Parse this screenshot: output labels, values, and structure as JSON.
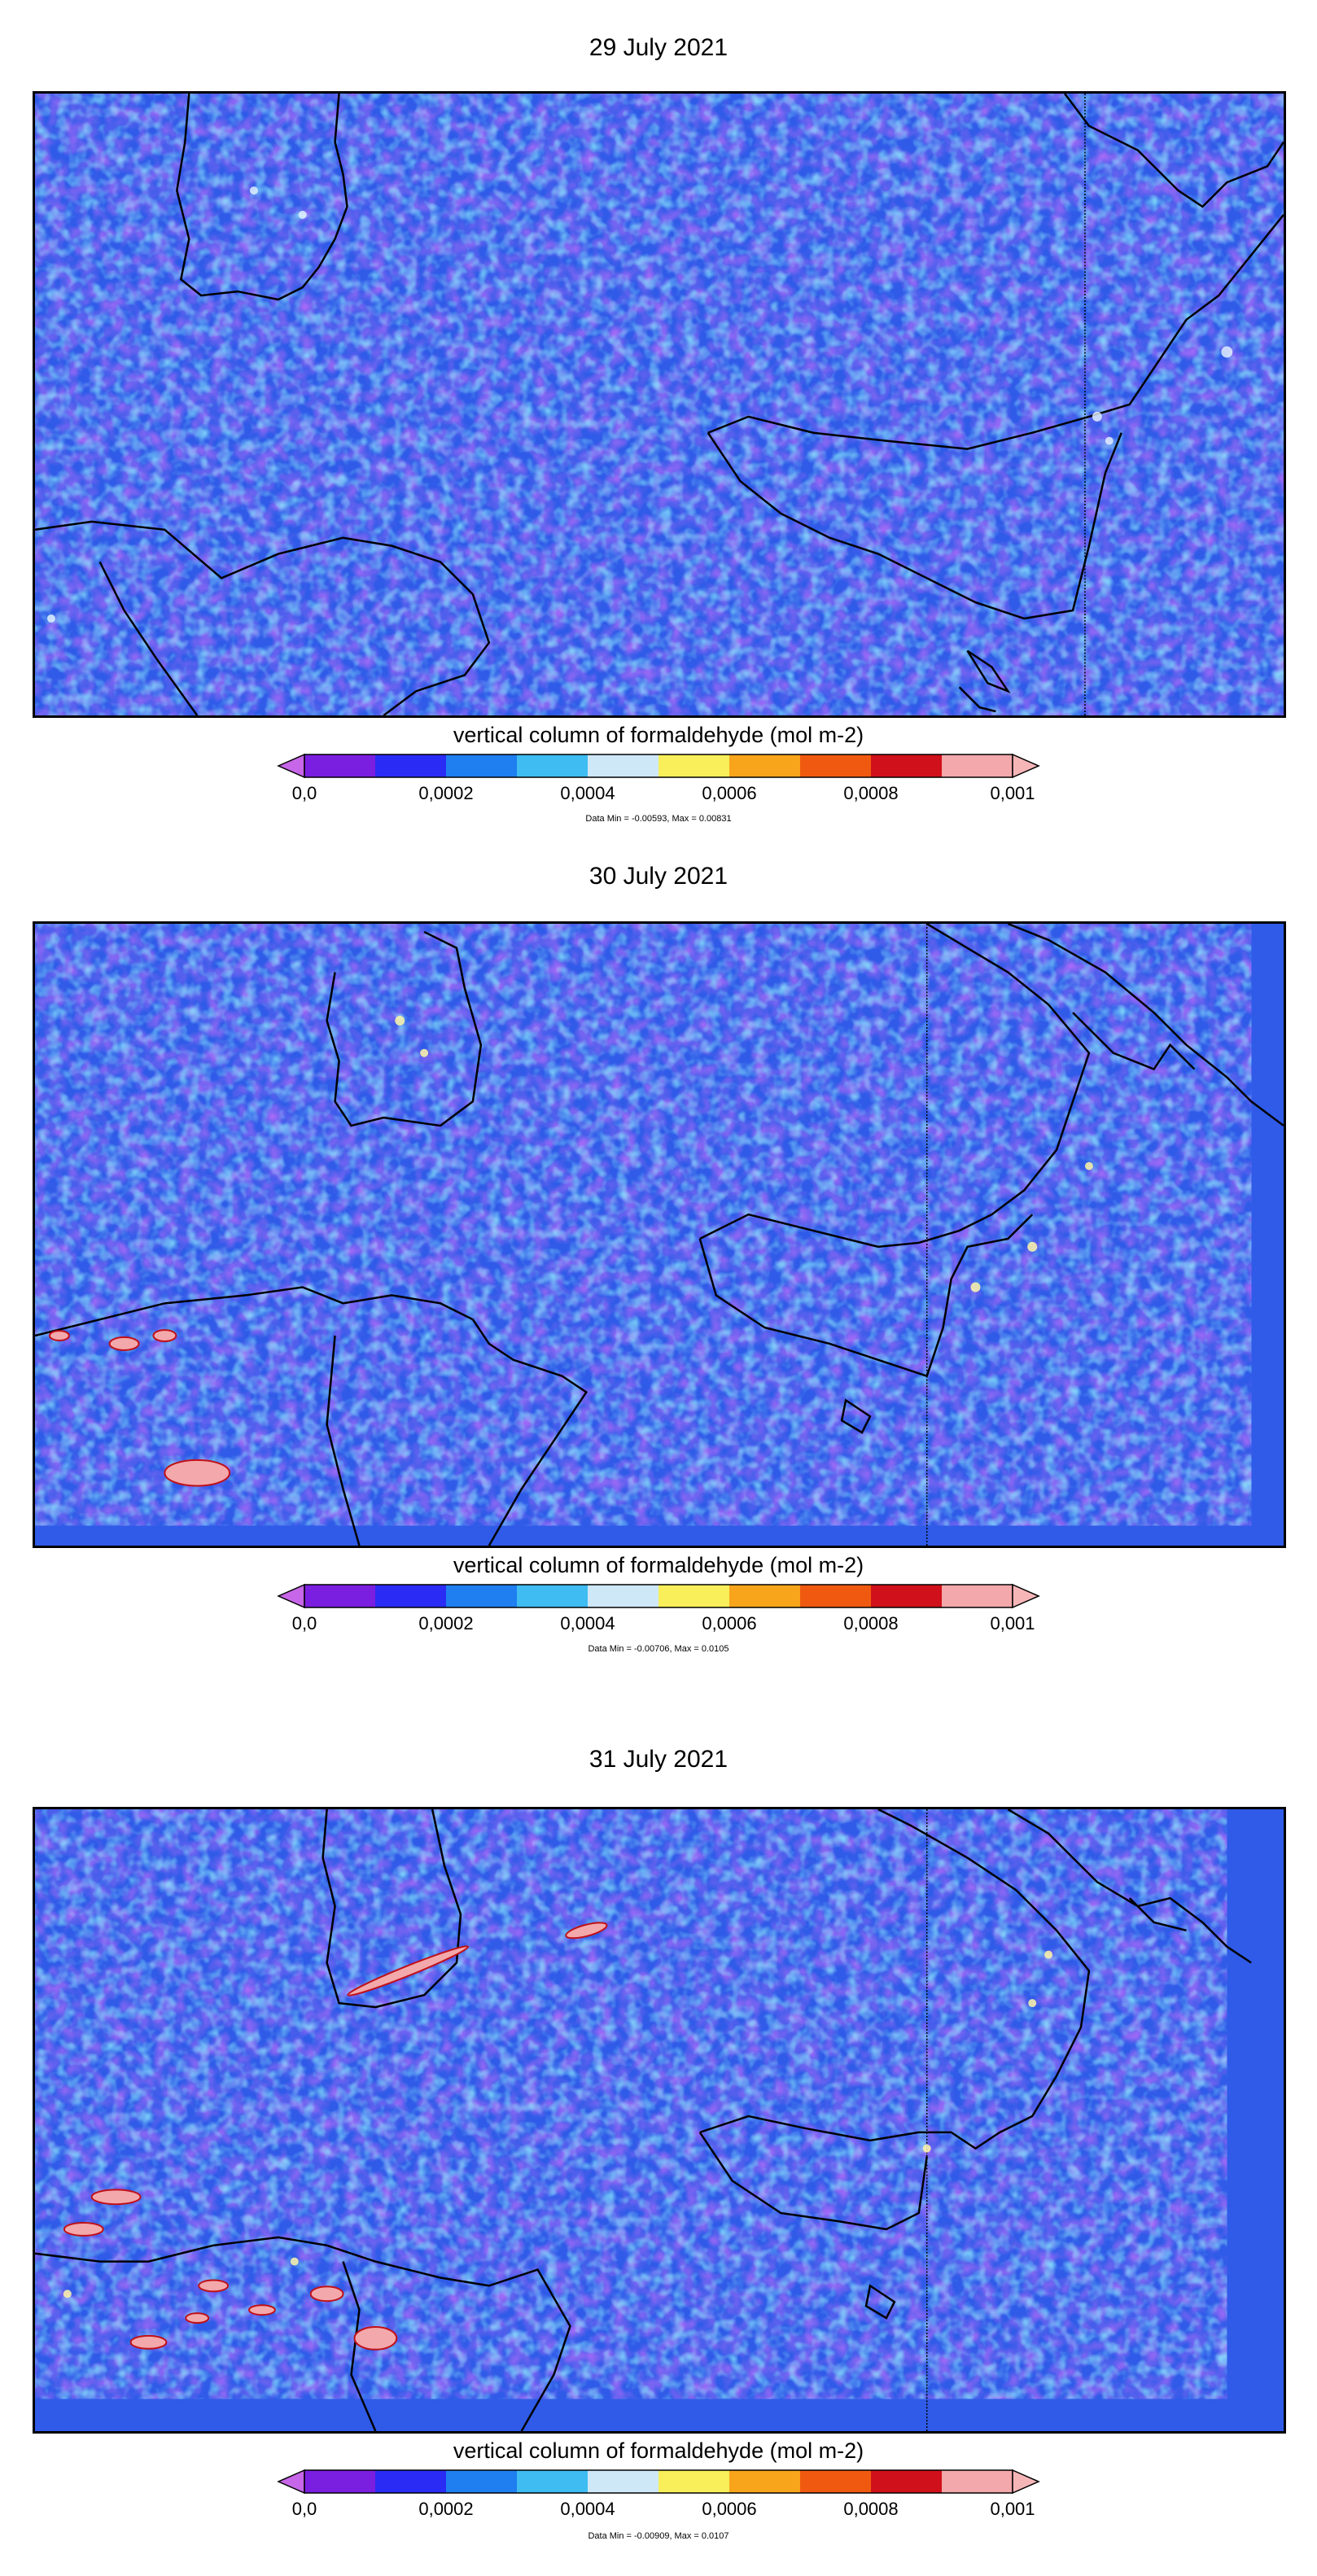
{
  "colorbar": {
    "title": "vertical column of formaldehyde (mol m-2)",
    "ticks": [
      "0,0",
      "0,0002",
      "0,0004",
      "0,0006",
      "0,0008",
      "0,001"
    ],
    "colors": [
      "#7a1fe0",
      "#2a2cf5",
      "#1f7ff0",
      "#3fbcf2",
      "#cfe8f8",
      "#f8ef5a",
      "#f8a51c",
      "#f05a10",
      "#d0101a",
      "#f3a8ab"
    ]
  },
  "panels": [
    {
      "title": "29 July 2021",
      "minmax": "Data Min = -0.00593, Max = 0.00831"
    },
    {
      "title": "30 July 2021",
      "minmax": "Data Min = -0.00706, Max = 0.0105"
    },
    {
      "title": "31 July 2021",
      "minmax": "Data Min = -0.00909, Max = 0.0107"
    }
  ]
}
